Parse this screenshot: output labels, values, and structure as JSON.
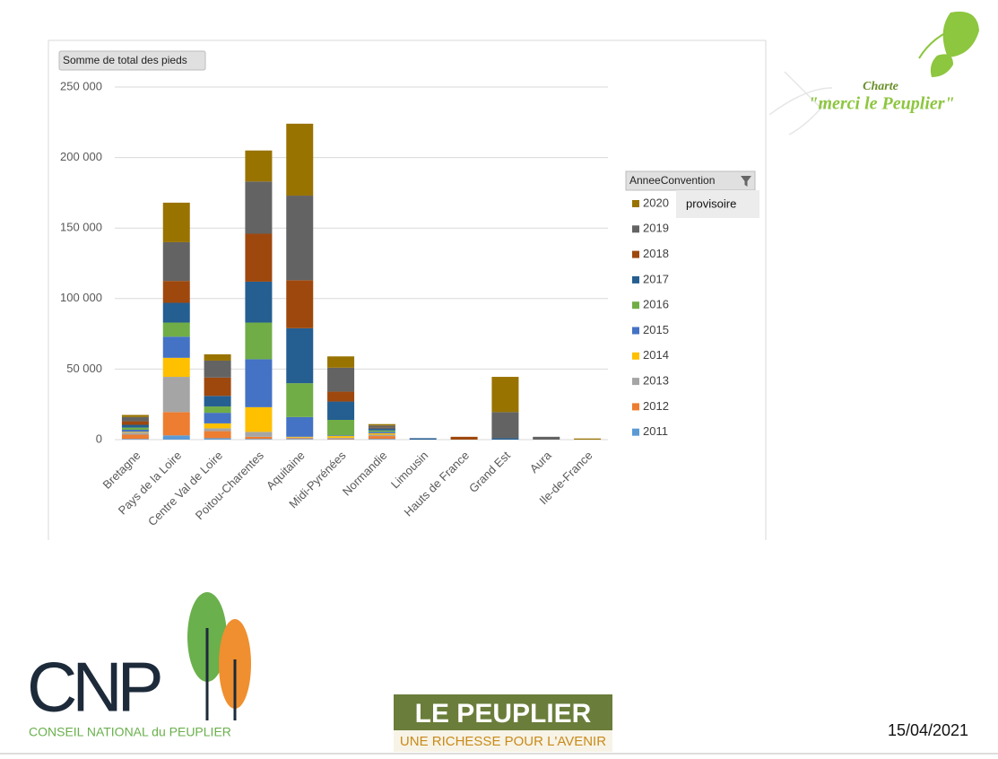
{
  "chart_data": {
    "type": "bar",
    "stacked": true,
    "title": "Somme de total des pieds",
    "legend_title": "AnneeConvention",
    "legend_note": "provisoire",
    "categories": [
      "Bretagne",
      "Pays de la Loire",
      "Centre Val de Loire",
      "Poitou-Charentes",
      "Aquitaine",
      "Midi-Pyrénées",
      "Normandie",
      "Limousin",
      "Hauts de France",
      "Grand Est",
      "Aura",
      "Ile-de-France"
    ],
    "series": [
      {
        "name": "2011",
        "color": "#5b9bd5",
        "values": [
          500,
          3000,
          1000,
          500,
          500,
          300,
          500,
          0,
          0,
          0,
          0,
          0
        ]
      },
      {
        "name": "2012",
        "color": "#ed7d31",
        "values": [
          3000,
          16500,
          5000,
          1500,
          500,
          500,
          2000,
          0,
          0,
          0,
          0,
          0
        ]
      },
      {
        "name": "2013",
        "color": "#a5a5a5",
        "values": [
          1500,
          25000,
          2000,
          3500,
          500,
          500,
          1000,
          0,
          0,
          0,
          0,
          0
        ]
      },
      {
        "name": "2014",
        "color": "#ffc000",
        "values": [
          500,
          13500,
          3500,
          17500,
          500,
          1200,
          1000,
          0,
          0,
          0,
          0,
          0
        ]
      },
      {
        "name": "2015",
        "color": "#4472c4",
        "values": [
          1500,
          15000,
          7500,
          34000,
          14000,
          500,
          1000,
          0,
          0,
          0,
          0,
          0
        ]
      },
      {
        "name": "2016",
        "color": "#70ad47",
        "values": [
          1500,
          10000,
          4500,
          26000,
          24000,
          11000,
          1000,
          0,
          0,
          0,
          0,
          0
        ]
      },
      {
        "name": "2017",
        "color": "#255e91",
        "values": [
          2000,
          14000,
          7500,
          29000,
          39000,
          13000,
          1500,
          1000,
          0,
          1000,
          0,
          0
        ]
      },
      {
        "name": "2018",
        "color": "#9e480e",
        "values": [
          2500,
          15500,
          13000,
          34000,
          34000,
          7000,
          500,
          0,
          2000,
          0,
          0,
          0
        ]
      },
      {
        "name": "2019",
        "color": "#636363",
        "values": [
          3000,
          27500,
          12000,
          37000,
          60000,
          17000,
          1500,
          0,
          0,
          18500,
          2000,
          0
        ]
      },
      {
        "name": "2020",
        "color": "#997300",
        "values": [
          1500,
          28000,
          4500,
          22000,
          51000,
          8000,
          1000,
          0,
          0,
          25000,
          0,
          800
        ]
      }
    ],
    "ylim": [
      0,
      250000
    ],
    "yticks": [
      0,
      {
        "value": 50000,
        "label": "50 000"
      },
      {
        "value": 100000,
        "label": "100 000"
      },
      {
        "value": 150000,
        "label": "150 000"
      },
      {
        "value": 200000,
        "label": "200 000"
      },
      {
        "value": 250000,
        "label": "250 000"
      }
    ],
    "grid": true
  },
  "slide": {
    "charte": "Charte",
    "slogan": "\"merci le Peuplier\"",
    "logo_letters": "CNP",
    "logo_name": "CONSEIL NATIONAL du PEUPLIER",
    "banner_title": "LE PEUPLIER",
    "banner_subtitle": "UNE RICHESSE POUR L'AVENIR",
    "date": "15/04/2021"
  }
}
